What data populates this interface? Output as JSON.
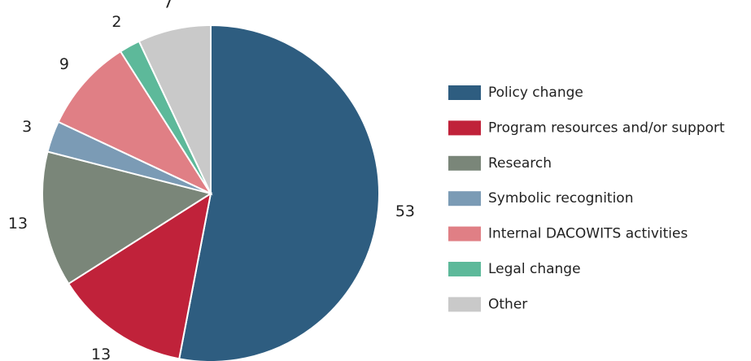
{
  "chart_data": {
    "type": "pie",
    "categories": [
      "Policy change",
      "Program resources and/or support",
      "Research",
      "Symbolic recognition",
      "Internal DACOWITS activities",
      "Legal change",
      "Other"
    ],
    "values": [
      53,
      13,
      13,
      3,
      9,
      2,
      7
    ],
    "colors": [
      "#2e5d80",
      "#c0223a",
      "#7a8679",
      "#7b9bb5",
      "#e07f85",
      "#5db99a",
      "#c9c9c9"
    ],
    "legend": "right"
  }
}
